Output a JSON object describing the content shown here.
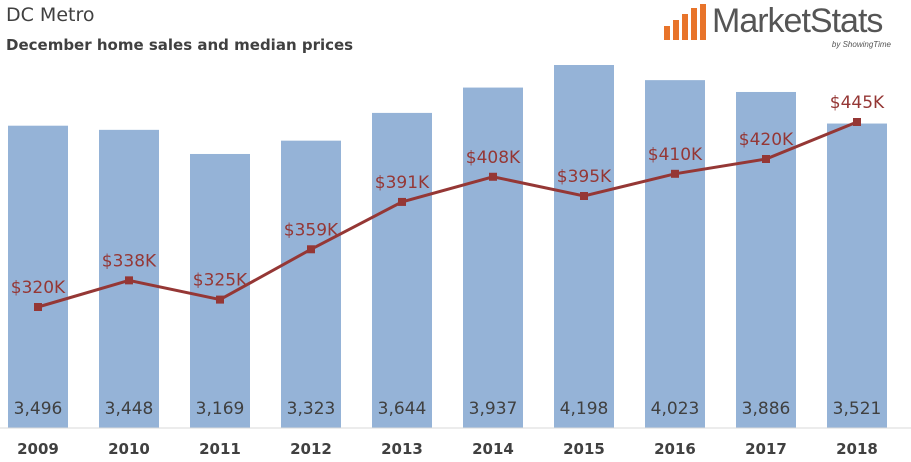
{
  "header": {
    "title": "DC Metro",
    "subtitle": "December home sales and median prices"
  },
  "logo": {
    "name_part1": "Market",
    "name_part2": "Stats",
    "tagline": "by ShowingTime",
    "accent_color": "#e8742a",
    "text_color": "#555555"
  },
  "chart_data": {
    "type": "bar",
    "categories": [
      "2009",
      "2010",
      "2011",
      "2012",
      "2013",
      "2014",
      "2015",
      "2016",
      "2017",
      "2018"
    ],
    "series": [
      {
        "type": "bar",
        "values": [
          3496,
          3448,
          3169,
          3323,
          3644,
          3937,
          4198,
          4023,
          3886,
          3521
        ],
        "labels": [
          "3,496",
          "3,448",
          "3,169",
          "3,323",
          "3,644",
          "3,937",
          "4,198",
          "4,023",
          "3,886",
          "3,521"
        ],
        "color": "#95b3d7"
      },
      {
        "type": "line",
        "values": [
          320,
          338,
          325,
          359,
          391,
          408,
          395,
          410,
          420,
          445
        ],
        "labels": [
          "$320K",
          "$338K",
          "$325K",
          "$359K",
          "$391K",
          "$408K",
          "$395K",
          "$410K",
          "$420K",
          "$445K"
        ],
        "color": "#953735"
      }
    ],
    "grid": false,
    "legend": "none"
  }
}
